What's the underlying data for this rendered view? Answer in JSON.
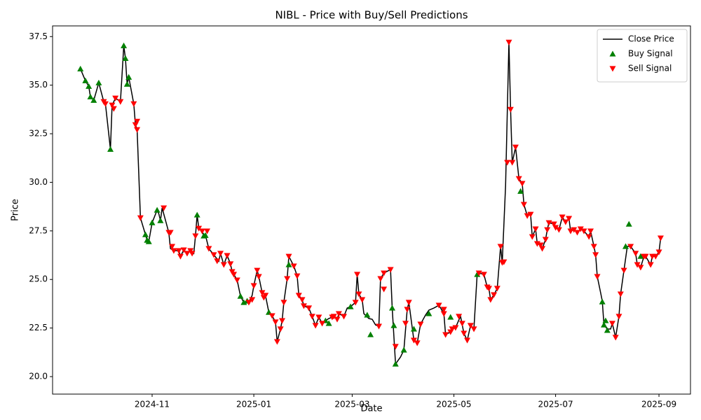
{
  "chart_data": {
    "type": "line",
    "title": "NIBL - Price with Buy/Sell Predictions",
    "x_label": "Date",
    "y_label": "Price",
    "xlim": [
      19968.3,
      20350.9
    ],
    "xticks": [
      {
        "value": 20028,
        "label": "2024-11"
      },
      {
        "value": 20089,
        "label": "2025-01"
      },
      {
        "value": 20148,
        "label": "2025-03"
      },
      {
        "value": 20209,
        "label": "2025-05"
      },
      {
        "value": 20270,
        "label": "2025-07"
      },
      {
        "value": 20332,
        "label": "2025-09"
      }
    ],
    "ylim": [
      19.1,
      38.05
    ],
    "yticks": [
      {
        "value": 20,
        "label": "20.0"
      },
      22.5,
      {
        "value": 25,
        "label": "25.0"
      },
      27.5,
      {
        "value": 30,
        "label": "30.0"
      },
      32.5,
      {
        "value": 35,
        "label": "35.0"
      },
      37.5
    ],
    "grid": false,
    "legend": "upper right",
    "series": [
      {
        "name": "Close Price",
        "type": "line",
        "color": "#000000",
        "x": [
          19985,
          19988,
          19990,
          19991,
          19993,
          19996,
          19999,
          20000,
          20003,
          20004,
          20006,
          20009,
          20011,
          20012,
          20013,
          20014,
          20017,
          20018,
          20019,
          20021,
          20024,
          20025,
          20026,
          20028,
          20031,
          20032,
          20033,
          20034,
          20038,
          20039,
          20041,
          20044,
          20045,
          20047,
          20049,
          20051,
          20053,
          20054,
          20055,
          20056,
          20058,
          20059,
          20060,
          20062,
          20065,
          20068,
          20069,
          20071,
          20073,
          20075,
          20076,
          20077,
          20079,
          20081,
          20083,
          20085,
          20086,
          20088,
          20089,
          20091,
          20092,
          20094,
          20096,
          20098,
          20100,
          20102,
          20103,
          20105,
          20106,
          20107,
          20109,
          20110,
          20113,
          20115,
          20116,
          20118,
          20119,
          20122,
          20124,
          20126,
          20128,
          20130,
          20132,
          20134,
          20136,
          20137,
          20139,
          20140,
          20143,
          20145,
          20147,
          20150,
          20151,
          20152,
          20154,
          20155,
          20158,
          20160,
          20162,
          20164,
          20165,
          20167,
          20171,
          20172,
          20174,
          20177,
          20179,
          20181,
          20182,
          20185,
          20187,
          20189,
          20192,
          20194,
          20197,
          20200,
          20201,
          20203,
          20204,
          20207,
          20208,
          20210,
          20212,
          20213,
          20215,
          20217,
          20219,
          20221,
          20223,
          20224,
          20227,
          20229,
          20230,
          20231,
          20233,
          20235,
          20237,
          20238,
          20240,
          20242,
          20243,
          20244,
          20246,
          20248,
          20250,
          20251,
          20253,
          20255,
          20256,
          20258,
          20259,
          20261,
          20262,
          20264,
          20265,
          20266,
          20269,
          20270,
          20272,
          20274,
          20276,
          20278,
          20279,
          20281,
          20283,
          20285,
          20287,
          20290,
          20291,
          20293,
          20294,
          20295,
          20297,
          20298,
          20299,
          20301,
          20303,
          20304,
          20306,
          20308,
          20309,
          20311,
          20313,
          20315,
          20318,
          20319,
          20321,
          20323,
          20324,
          20327,
          20328,
          20330,
          20332,
          20333
        ],
        "values": [
          35.84,
          35.23,
          34.94,
          34.4,
          34.22,
          35.12,
          34.15,
          34.04,
          31.7,
          33.97,
          34.33,
          34.15,
          37.03,
          36.38,
          35.05,
          35.41,
          34.04,
          32.96,
          32.71,
          28.17,
          27.31,
          27.02,
          26.95,
          27.92,
          28.57,
          28.39,
          28.03,
          28.68,
          27.42,
          26.59,
          26.48,
          26.48,
          26.19,
          26.52,
          26.34,
          26.48,
          26.34,
          27.24,
          28.32,
          27.63,
          27.49,
          27.24,
          27.27,
          26.59,
          26.27,
          25.94,
          26.34,
          25.76,
          26.23,
          25.8,
          25.4,
          25.26,
          24.97,
          24.14,
          23.82,
          23.89,
          23.82,
          24.18,
          24.68,
          25.47,
          25.15,
          24.32,
          24.18,
          23.31,
          23.13,
          22.81,
          21.8,
          22.45,
          22.88,
          23.82,
          25.04,
          26.19,
          25.69,
          25.18,
          24.18,
          23.96,
          23.64,
          23.53,
          23.1,
          22.63,
          23.06,
          22.74,
          22.88,
          22.99,
          23.06,
          23.1,
          22.95,
          23.24,
          23.1,
          23.53,
          23.6,
          23.82,
          25.26,
          24.25,
          23.96,
          23.24,
          22.99,
          22.95,
          22.66,
          22.59,
          25.04,
          25.33,
          25.51,
          23.53,
          20.65,
          21.01,
          21.37,
          23.46,
          23.82,
          21.87,
          21.73,
          22.7,
          23.17,
          23.42,
          23.53,
          23.67,
          23.53,
          23.24,
          22.16,
          22.3,
          22.45,
          22.52,
          22.92,
          23.1,
          22.23,
          21.87,
          22.63,
          22.45,
          25.33,
          25.33,
          25.26,
          24.61,
          24.54,
          23.96,
          24.21,
          24.54,
          26.7,
          25.87,
          29.83,
          37.21,
          33.75,
          31.02,
          31.81,
          30.19,
          29.94,
          28.86,
          28.28,
          28.35,
          27.2,
          27.6,
          26.84,
          26.77,
          26.59,
          27.06,
          27.56,
          27.92,
          27.85,
          27.67,
          27.56,
          28.21,
          27.96,
          28.14,
          27.49,
          27.56,
          27.42,
          27.6,
          27.49,
          27.2,
          27.49,
          26.7,
          26.27,
          25.15,
          24.32,
          23.89,
          22.66,
          22.45,
          22.45,
          22.74,
          22.02,
          23.1,
          24.25,
          25.47,
          26.7,
          26.7,
          26.34,
          25.76,
          25.62,
          26.19,
          26.19,
          25.76,
          26.19,
          26.19,
          26.41,
          27.13
        ]
      },
      {
        "name": "Buy Signal",
        "type": "scatter",
        "marker": "triangle-up",
        "color": "#008000",
        "x": [
          19985,
          19988,
          19990,
          19991,
          19993,
          19996,
          20003,
          20011,
          20012,
          20013,
          20014,
          20024,
          20025,
          20026,
          20028,
          20031,
          20033,
          20055,
          20059,
          20060,
          20081,
          20083,
          20085,
          20098,
          20110,
          20132,
          20134,
          20147,
          20157,
          20159,
          20172,
          20173,
          20174,
          20179,
          20185,
          20194,
          20207,
          20223,
          20249,
          20298,
          20299,
          20300,
          20301,
          20312,
          20314,
          20321
        ],
        "values": [
          35.84,
          35.23,
          34.94,
          34.4,
          34.22,
          35.12,
          31.7,
          37.03,
          36.38,
          35.05,
          35.41,
          27.31,
          27.02,
          26.95,
          27.92,
          28.57,
          28.03,
          28.32,
          27.24,
          27.27,
          24.14,
          23.82,
          23.89,
          23.31,
          25.76,
          22.88,
          22.74,
          23.6,
          23.17,
          22.16,
          23.53,
          22.63,
          20.65,
          21.37,
          22.45,
          23.24,
          23.06,
          25.26,
          29.54,
          23.85,
          22.66,
          22.88,
          22.38,
          26.7,
          27.85,
          26.19
        ]
      },
      {
        "name": "Sell Signal",
        "type": "scatter",
        "marker": "triangle-down",
        "color": "#ff0000",
        "x": [
          19999,
          20000,
          20004,
          20005,
          20006,
          20009,
          20017,
          20018,
          20019,
          20019,
          20021,
          20035,
          20038,
          20039,
          20040,
          20041,
          20044,
          20045,
          20047,
          20049,
          20051,
          20052,
          20054,
          20056,
          20058,
          20061,
          20062,
          20065,
          20067,
          20069,
          20071,
          20073,
          20075,
          20076,
          20077,
          20079,
          20086,
          20088,
          20089,
          20091,
          20092,
          20094,
          20095,
          20096,
          20100,
          20102,
          20103,
          20105,
          20106,
          20107,
          20109,
          20110,
          20113,
          20115,
          20116,
          20118,
          20119,
          20122,
          20124,
          20126,
          20128,
          20130,
          20136,
          20137,
          20139,
          20140,
          20143,
          20150,
          20151,
          20152,
          20154,
          20164,
          20165,
          20167,
          20167,
          20171,
          20174,
          20180,
          20181,
          20182,
          20185,
          20187,
          20189,
          20200,
          20203,
          20203,
          20204,
          20207,
          20208,
          20210,
          20212,
          20214,
          20215,
          20217,
          20219,
          20221,
          20224,
          20227,
          20229,
          20230,
          20231,
          20233,
          20235,
          20237,
          20238,
          20239,
          20241,
          20242,
          20243,
          20244,
          20246,
          20248,
          20250,
          20251,
          20253,
          20255,
          20256,
          20258,
          20259,
          20261,
          20262,
          20264,
          20265,
          20266,
          20269,
          20270,
          20272,
          20274,
          20276,
          20278,
          20279,
          20281,
          20283,
          20285,
          20287,
          20290,
          20291,
          20293,
          20294,
          20295,
          20304,
          20306,
          20308,
          20309,
          20311,
          20315,
          20318,
          20319,
          20321,
          20323,
          20324,
          20327,
          20328,
          20330,
          20332,
          20333
        ],
        "values": [
          34.15,
          34.04,
          33.97,
          33.79,
          34.33,
          34.15,
          34.04,
          32.96,
          32.71,
          33.14,
          28.17,
          28.68,
          27.42,
          27.42,
          26.7,
          26.48,
          26.48,
          26.19,
          26.52,
          26.34,
          26.48,
          26.34,
          27.24,
          27.63,
          27.49,
          27.49,
          26.59,
          26.27,
          25.95,
          26.34,
          25.76,
          26.23,
          25.8,
          25.4,
          25.26,
          24.97,
          23.82,
          23.96,
          24.68,
          25.47,
          25.15,
          24.32,
          24.07,
          24.18,
          23.13,
          22.81,
          21.8,
          22.45,
          22.88,
          23.82,
          25.04,
          26.19,
          25.69,
          25.18,
          24.18,
          23.96,
          23.64,
          23.53,
          23.1,
          22.63,
          23.06,
          22.74,
          23.06,
          23.1,
          22.95,
          23.24,
          23.1,
          23.82,
          25.26,
          24.25,
          23.96,
          22.59,
          25.04,
          24.5,
          25.33,
          25.51,
          21.55,
          22.74,
          23.46,
          23.82,
          21.87,
          21.73,
          22.7,
          23.67,
          23.46,
          23.24,
          22.16,
          22.3,
          22.45,
          22.52,
          23.1,
          22.74,
          22.23,
          21.87,
          22.63,
          22.45,
          25.33,
          25.26,
          24.61,
          24.54,
          23.96,
          24.21,
          24.54,
          26.7,
          25.87,
          25.9,
          31.02,
          37.21,
          33.75,
          31.02,
          31.81,
          30.19,
          29.94,
          28.86,
          28.28,
          28.35,
          27.2,
          27.6,
          26.84,
          26.77,
          26.59,
          27.06,
          27.56,
          27.92,
          27.85,
          27.67,
          27.56,
          28.21,
          27.96,
          28.14,
          27.49,
          27.56,
          27.42,
          27.6,
          27.49,
          27.2,
          27.49,
          26.7,
          26.27,
          25.15,
          22.74,
          22.02,
          23.1,
          24.25,
          25.47,
          26.7,
          26.34,
          25.76,
          25.62,
          26.19,
          26.19,
          25.76,
          26.19,
          26.19,
          26.41,
          27.13
        ]
      }
    ]
  }
}
